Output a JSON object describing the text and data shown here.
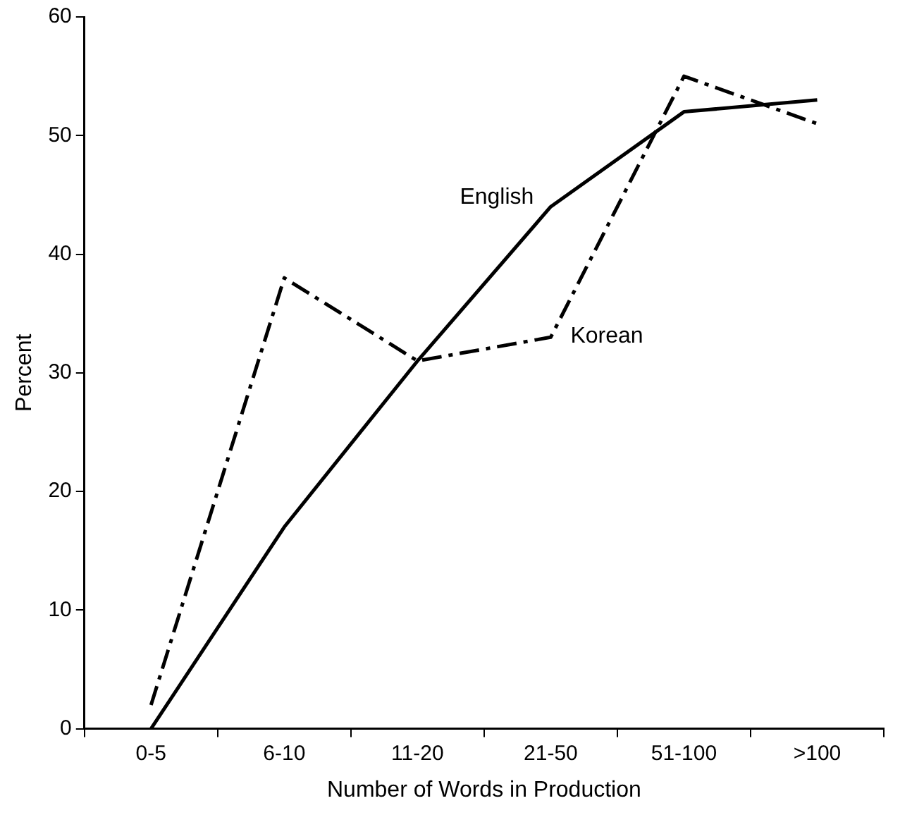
{
  "chart_data": {
    "type": "line",
    "xlabel": "Number of Words in Production",
    "ylabel": "Percent",
    "categories": [
      "0-5",
      "6-10",
      "11-20",
      "21-50",
      "51-100",
      ">100"
    ],
    "series": [
      {
        "name": "English",
        "color": "#000000",
        "line_style": "solid",
        "values": [
          0,
          17,
          31,
          44,
          52,
          53
        ]
      },
      {
        "name": "Korean",
        "color": "#000000",
        "line_style": "dashdot",
        "values": [
          2,
          38,
          31,
          33,
          55,
          51
        ]
      }
    ],
    "ylim": [
      0,
      60
    ],
    "yticks": [
      0,
      10,
      20,
      30,
      40,
      50,
      60
    ],
    "grid": false,
    "legend": false,
    "marker": "none"
  }
}
